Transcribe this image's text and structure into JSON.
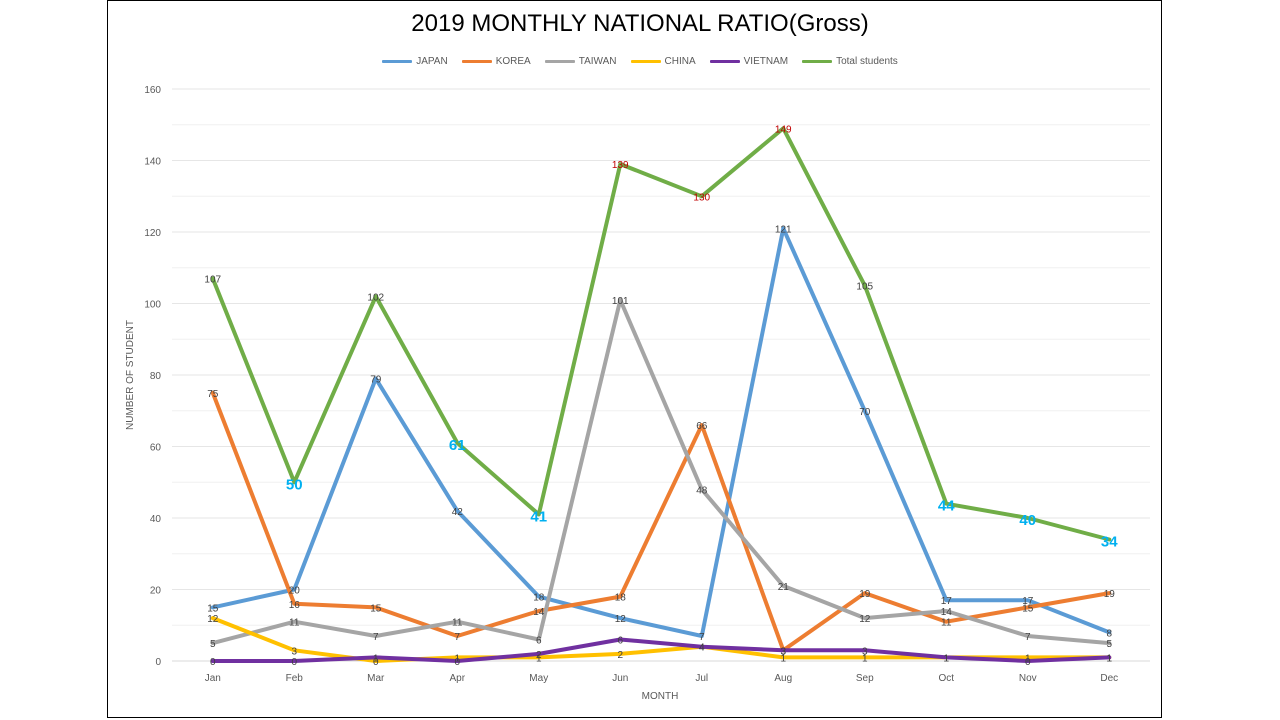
{
  "chart_data": {
    "type": "line",
    "title": "2019 MONTHLY NATIONAL RATIO(Gross)",
    "xlabel": "MONTH",
    "ylabel": "NUMBER OF STUDENT",
    "ylim": [
      0,
      160
    ],
    "yticks": [
      0,
      20,
      40,
      60,
      80,
      100,
      120,
      140,
      160
    ],
    "grid": true,
    "legend_position": "top-center",
    "categories": [
      "Jan",
      "Feb",
      "Mar",
      "Apr",
      "May",
      "Jun",
      "Jul",
      "Aug",
      "Sep",
      "Oct",
      "Nov",
      "Dec"
    ],
    "series": [
      {
        "name": "JAPAN",
        "color": "#5B9BD5",
        "values": [
          15,
          20,
          79,
          42,
          18,
          12,
          7,
          121,
          70,
          17,
          17,
          8
        ]
      },
      {
        "name": "KOREA",
        "color": "#ED7D31",
        "values": [
          75,
          16,
          15,
          7,
          14,
          18,
          66,
          3,
          19,
          11,
          15,
          19
        ]
      },
      {
        "name": "TAIWAN",
        "color": "#A5A5A5",
        "values": [
          5,
          11,
          7,
          11,
          6,
          101,
          48,
          21,
          12,
          14,
          7,
          5
        ]
      },
      {
        "name": "CHINA",
        "color": "#FFC000",
        "values": [
          12,
          3,
          0,
          1,
          1,
          2,
          4,
          1,
          1,
          1,
          1,
          1
        ]
      },
      {
        "name": "VIETNAM",
        "color": "#7030A0",
        "values": [
          0,
          0,
          1,
          0,
          2,
          6,
          4,
          3,
          3,
          1,
          0,
          1
        ]
      },
      {
        "name": "Total students",
        "color": "#70AD47",
        "values": [
          107,
          50,
          102,
          61,
          41,
          139,
          130,
          149,
          105,
          44,
          40,
          34
        ]
      }
    ],
    "label_colors": {
      "default": "#404040",
      "highlight_red": "#C00000",
      "highlight_cyan": "#00B0F0"
    }
  }
}
